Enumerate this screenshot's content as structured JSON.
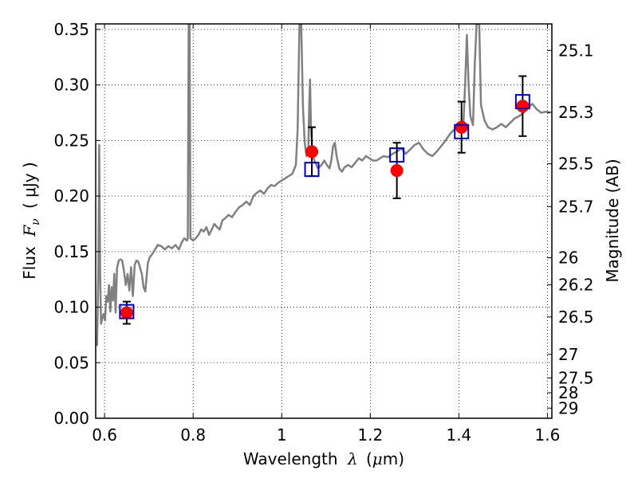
{
  "chart_data": {
    "type": "scatter",
    "xlabel": {
      "prefix": "Wavelength",
      "symbol": "λ",
      "unit_open": "(",
      "unit_sym": "μ",
      "unit_rest": "m)"
    },
    "ylabel": {
      "prefix": "Flux",
      "symbol": "F",
      "subscript": "ν",
      "unit": "( μJy )"
    },
    "y2label": "Magnitude (AB)",
    "xlim": [
      0.58,
      1.61
    ],
    "ylim": [
      0.0,
      0.355
    ],
    "grid": true,
    "x_ticks": [
      {
        "value": 0.6,
        "label": "0.6"
      },
      {
        "value": 0.8,
        "label": "0.8"
      },
      {
        "value": 1.0,
        "label": "1"
      },
      {
        "value": 1.2,
        "label": "1.2"
      },
      {
        "value": 1.4,
        "label": "1.4"
      },
      {
        "value": 1.6,
        "label": "1.6"
      }
    ],
    "y_ticks": [
      {
        "value": 0.0,
        "label": "0.00"
      },
      {
        "value": 0.05,
        "label": "0.05"
      },
      {
        "value": 0.1,
        "label": "0.10"
      },
      {
        "value": 0.15,
        "label": "0.15"
      },
      {
        "value": 0.2,
        "label": "0.20"
      },
      {
        "value": 0.25,
        "label": "0.25"
      },
      {
        "value": 0.3,
        "label": "0.30"
      },
      {
        "value": 0.35,
        "label": "0.35"
      }
    ],
    "magnitude_ticks": [
      {
        "value": 25.1,
        "label": "25.1"
      },
      {
        "value": 25.3,
        "label": "25.3"
      },
      {
        "value": 25.5,
        "label": "25.5"
      },
      {
        "value": 25.7,
        "label": "25.7"
      },
      {
        "value": 26.0,
        "label": "26"
      },
      {
        "value": 26.2,
        "label": "26.2"
      },
      {
        "value": 26.5,
        "label": "26.5"
      },
      {
        "value": 27.0,
        "label": "27"
      },
      {
        "value": 27.5,
        "label": "27.5"
      },
      {
        "value": 28.0,
        "label": "28"
      },
      {
        "value": 29.0,
        "label": "29"
      }
    ],
    "magnitude_zero_point": 23.9,
    "spectrum": {
      "color": "#808080",
      "points": [
        [
          0.583,
          0.065
        ],
        [
          0.586,
          0.13
        ],
        [
          0.588,
          0.246
        ],
        [
          0.59,
          0.13
        ],
        [
          0.592,
          0.085
        ],
        [
          0.595,
          0.09
        ],
        [
          0.598,
          0.094
        ],
        [
          0.601,
          0.088
        ],
        [
          0.604,
          0.11
        ],
        [
          0.607,
          0.105
        ],
        [
          0.61,
          0.12
        ],
        [
          0.613,
          0.096
        ],
        [
          0.616,
          0.118
        ],
        [
          0.619,
          0.106
        ],
        [
          0.622,
          0.13
        ],
        [
          0.625,
          0.095
        ],
        [
          0.628,
          0.135
        ],
        [
          0.632,
          0.142
        ],
        [
          0.636,
          0.143
        ],
        [
          0.64,
          0.142
        ],
        [
          0.644,
          0.132
        ],
        [
          0.648,
          0.12
        ],
        [
          0.652,
          0.13
        ],
        [
          0.656,
          0.115
        ],
        [
          0.66,
          0.136
        ],
        [
          0.664,
          0.11
        ],
        [
          0.668,
          0.138
        ],
        [
          0.672,
          0.142
        ],
        [
          0.676,
          0.141
        ],
        [
          0.68,
          0.136
        ],
        [
          0.684,
          0.13
        ],
        [
          0.688,
          0.118
        ],
        [
          0.692,
          0.114
        ],
        [
          0.695,
          0.128
        ],
        [
          0.698,
          0.14
        ],
        [
          0.702,
          0.145
        ],
        [
          0.708,
          0.148
        ],
        [
          0.714,
          0.152
        ],
        [
          0.72,
          0.156
        ],
        [
          0.728,
          0.155
        ],
        [
          0.736,
          0.152
        ],
        [
          0.744,
          0.155
        ],
        [
          0.752,
          0.153
        ],
        [
          0.76,
          0.156
        ],
        [
          0.768,
          0.152
        ],
        [
          0.774,
          0.158
        ],
        [
          0.78,
          0.162
        ],
        [
          0.786,
          0.16
        ],
        [
          0.788,
          0.162
        ],
        [
          0.79,
          0.355
        ],
        [
          0.792,
          0.355
        ],
        [
          0.794,
          0.162
        ],
        [
          0.8,
          0.16
        ],
        [
          0.806,
          0.162
        ],
        [
          0.812,
          0.165
        ],
        [
          0.818,
          0.17
        ],
        [
          0.824,
          0.168
        ],
        [
          0.83,
          0.172
        ],
        [
          0.836,
          0.165
        ],
        [
          0.842,
          0.17
        ],
        [
          0.848,
          0.175
        ],
        [
          0.854,
          0.172
        ],
        [
          0.86,
          0.17
        ],
        [
          0.866,
          0.178
        ],
        [
          0.872,
          0.18
        ],
        [
          0.88,
          0.183
        ],
        [
          0.888,
          0.181
        ],
        [
          0.896,
          0.186
        ],
        [
          0.904,
          0.19
        ],
        [
          0.912,
          0.192
        ],
        [
          0.92,
          0.195
        ],
        [
          0.928,
          0.192
        ],
        [
          0.936,
          0.2
        ],
        [
          0.944,
          0.203
        ],
        [
          0.952,
          0.205
        ],
        [
          0.96,
          0.202
        ],
        [
          0.968,
          0.207
        ],
        [
          0.976,
          0.21
        ],
        [
          0.984,
          0.209
        ],
        [
          0.992,
          0.212
        ],
        [
          1.0,
          0.214
        ],
        [
          1.008,
          0.216
        ],
        [
          1.016,
          0.218
        ],
        [
          1.024,
          0.22
        ],
        [
          1.032,
          0.228
        ],
        [
          1.036,
          0.26
        ],
        [
          1.04,
          0.355
        ],
        [
          1.044,
          0.355
        ],
        [
          1.048,
          0.28
        ],
        [
          1.052,
          0.248
        ],
        [
          1.056,
          0.236
        ],
        [
          1.06,
          0.24
        ],
        [
          1.062,
          0.28
        ],
        [
          1.064,
          0.305
        ],
        [
          1.066,
          0.262
        ],
        [
          1.07,
          0.236
        ],
        [
          1.076,
          0.23
        ],
        [
          1.082,
          0.225
        ],
        [
          1.09,
          0.228
        ],
        [
          1.096,
          0.232
        ],
        [
          1.102,
          0.228
        ],
        [
          1.108,
          0.225
        ],
        [
          1.112,
          0.232
        ],
        [
          1.116,
          0.245
        ],
        [
          1.12,
          0.248
        ],
        [
          1.124,
          0.236
        ],
        [
          1.13,
          0.225
        ],
        [
          1.136,
          0.222
        ],
        [
          1.142,
          0.226
        ],
        [
          1.15,
          0.228
        ],
        [
          1.158,
          0.226
        ],
        [
          1.166,
          0.23
        ],
        [
          1.174,
          0.234
        ],
        [
          1.182,
          0.232
        ],
        [
          1.19,
          0.236
        ],
        [
          1.198,
          0.234
        ],
        [
          1.206,
          0.232
        ],
        [
          1.214,
          0.232
        ],
        [
          1.222,
          0.234
        ],
        [
          1.23,
          0.236
        ],
        [
          1.24,
          0.235
        ],
        [
          1.25,
          0.238
        ],
        [
          1.26,
          0.24
        ],
        [
          1.27,
          0.243
        ],
        [
          1.28,
          0.238
        ],
        [
          1.29,
          0.242
        ],
        [
          1.3,
          0.246
        ],
        [
          1.31,
          0.248
        ],
        [
          1.32,
          0.242
        ],
        [
          1.33,
          0.238
        ],
        [
          1.34,
          0.236
        ],
        [
          1.35,
          0.24
        ],
        [
          1.36,
          0.245
        ],
        [
          1.37,
          0.25
        ],
        [
          1.38,
          0.256
        ],
        [
          1.39,
          0.26
        ],
        [
          1.396,
          0.262
        ],
        [
          1.4,
          0.26
        ],
        [
          1.404,
          0.258
        ],
        [
          1.41,
          0.262
        ],
        [
          1.414,
          0.3
        ],
        [
          1.418,
          0.345
        ],
        [
          1.422,
          0.3
        ],
        [
          1.426,
          0.272
        ],
        [
          1.432,
          0.264
        ],
        [
          1.436,
          0.32
        ],
        [
          1.44,
          0.355
        ],
        [
          1.446,
          0.355
        ],
        [
          1.45,
          0.282
        ],
        [
          1.458,
          0.268
        ],
        [
          1.466,
          0.262
        ],
        [
          1.476,
          0.26
        ],
        [
          1.486,
          0.262
        ],
        [
          1.496,
          0.265
        ],
        [
          1.506,
          0.262
        ],
        [
          1.516,
          0.266
        ],
        [
          1.526,
          0.27
        ],
        [
          1.536,
          0.272
        ],
        [
          1.546,
          0.275
        ],
        [
          1.556,
          0.28
        ],
        [
          1.566,
          0.283
        ],
        [
          1.576,
          0.278
        ],
        [
          1.586,
          0.275
        ],
        [
          1.596,
          0.276
        ],
        [
          1.606,
          0.275
        ]
      ]
    },
    "observed": {
      "color": "#ff0000",
      "points": [
        {
          "x": 0.65,
          "y": 0.095,
          "err": 0.01
        },
        {
          "x": 1.068,
          "y": 0.24,
          "err": 0.022
        },
        {
          "x": 1.26,
          "y": 0.223,
          "err": 0.025
        },
        {
          "x": 1.406,
          "y": 0.262,
          "err": 0.023
        },
        {
          "x": 1.544,
          "y": 0.281,
          "err": 0.027
        }
      ]
    },
    "model_squares": {
      "color": "#0000cc",
      "points": [
        {
          "x": 0.65,
          "y": 0.096
        },
        {
          "x": 1.068,
          "y": 0.224
        },
        {
          "x": 1.26,
          "y": 0.237
        },
        {
          "x": 1.406,
          "y": 0.258
        },
        {
          "x": 1.544,
          "y": 0.285
        }
      ]
    }
  }
}
